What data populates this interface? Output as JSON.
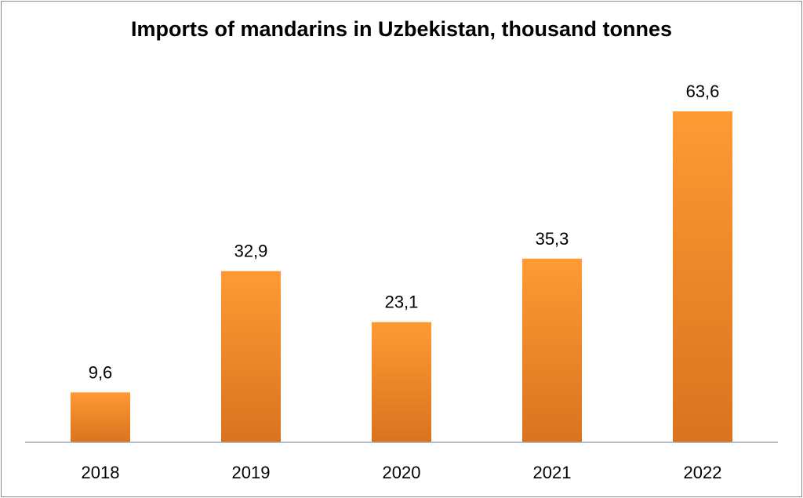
{
  "chart_data": {
    "type": "bar",
    "title": "Imports of mandarins in Uzbekistan, thousand tonnes",
    "categories": [
      "2018",
      "2019",
      "2020",
      "2021",
      "2022"
    ],
    "values": [
      9.6,
      32.9,
      23.1,
      35.3,
      63.6
    ],
    "value_labels": [
      "9,6",
      "32,9",
      "23,1",
      "35,3",
      "63,6"
    ],
    "xlabel": "",
    "ylabel": "",
    "ylim": [
      0,
      63.6
    ],
    "grid": false,
    "legend": "none",
    "colors": {
      "bar_top": "#ff9a33",
      "bar_bottom": "#d9731f",
      "axis": "#a6a6a6"
    }
  }
}
